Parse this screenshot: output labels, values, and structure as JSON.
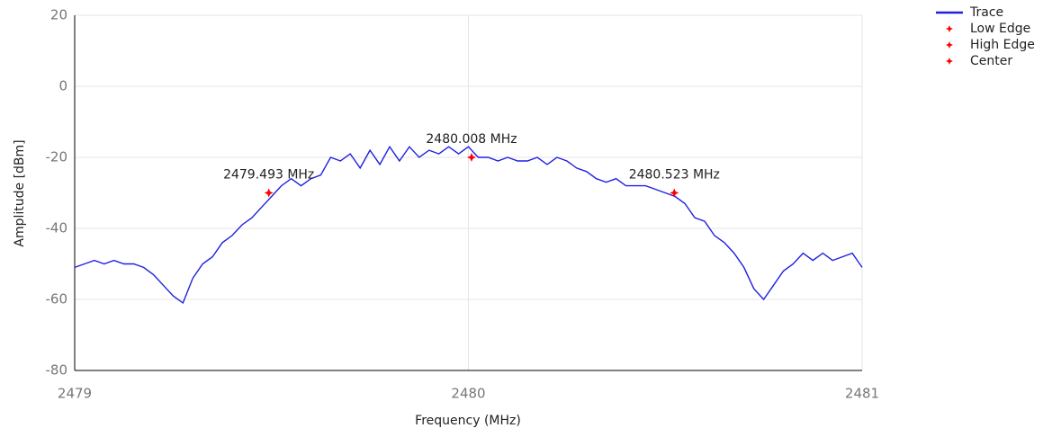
{
  "chart_data": {
    "type": "line",
    "xlabel": "Frequency (MHz)",
    "ylabel": "Amplitude [dBm]",
    "xlim": [
      2479,
      2481
    ],
    "xticks": [
      2479,
      2480,
      2481
    ],
    "ylim": [
      -80,
      20
    ],
    "yticks": [
      -80,
      -60,
      -40,
      -20,
      0,
      20
    ],
    "grid": true,
    "legend": "top-right",
    "x": [
      2479.0,
      2479.025,
      2479.05,
      2479.075,
      2479.1,
      2479.125,
      2479.15,
      2479.175,
      2479.2,
      2479.225,
      2479.25,
      2479.275,
      2479.3,
      2479.325,
      2479.35,
      2479.375,
      2479.4,
      2479.425,
      2479.45,
      2479.475,
      2479.5,
      2479.525,
      2479.55,
      2479.575,
      2479.6,
      2479.625,
      2479.65,
      2479.675,
      2479.7,
      2479.725,
      2479.75,
      2479.775,
      2479.8,
      2479.825,
      2479.85,
      2479.875,
      2479.9,
      2479.925,
      2479.95,
      2479.975,
      2480.0,
      2480.025,
      2480.05,
      2480.075,
      2480.1,
      2480.125,
      2480.15,
      2480.175,
      2480.2,
      2480.225,
      2480.25,
      2480.275,
      2480.3,
      2480.325,
      2480.35,
      2480.375,
      2480.4,
      2480.425,
      2480.45,
      2480.475,
      2480.5,
      2480.525,
      2480.55,
      2480.575,
      2480.6,
      2480.625,
      2480.65,
      2480.675,
      2480.7,
      2480.725,
      2480.75,
      2480.775,
      2480.8,
      2480.825,
      2480.85,
      2480.875,
      2480.9,
      2480.925,
      2480.95,
      2480.975,
      2481.0
    ],
    "series": [
      {
        "name": "Trace",
        "color": "#2020e0",
        "values": [
          -51,
          -50,
          -49,
          -50,
          -49,
          -50,
          -50,
          -51,
          -53,
          -56,
          -59,
          -61,
          -54,
          -50,
          -48,
          -44,
          -42,
          -39,
          -37,
          -34,
          -31,
          -28,
          -26,
          -28,
          -26,
          -25,
          -20,
          -21,
          -19,
          -23,
          -18,
          -22,
          -17,
          -21,
          -17,
          -20,
          -18,
          -19,
          -17,
          -19,
          -17,
          -20,
          -20,
          -21,
          -20,
          -21,
          -21,
          -20,
          -22,
          -20,
          -21,
          -23,
          -24,
          -26,
          -27,
          -26,
          -28,
          -28,
          -28,
          -29,
          -30,
          -31,
          -33,
          -37,
          -38,
          -42,
          -44,
          -47,
          -51,
          -57,
          -60,
          -56,
          -52,
          -50,
          -47,
          -49,
          -47,
          -49,
          -48,
          -47,
          -51
        ]
      }
    ],
    "markers": [
      {
        "name": "Low Edge",
        "color": "#ff0000",
        "x": 2479.493,
        "value": -30,
        "label": "2479.493 MHz"
      },
      {
        "name": "High Edge",
        "color": "#ff0000",
        "x": 2480.523,
        "value": -30,
        "label": "2480.523 MHz"
      },
      {
        "name": "Center",
        "color": "#ff0000",
        "x": 2480.008,
        "value": -20,
        "label": "2480.008 MHz"
      }
    ]
  }
}
